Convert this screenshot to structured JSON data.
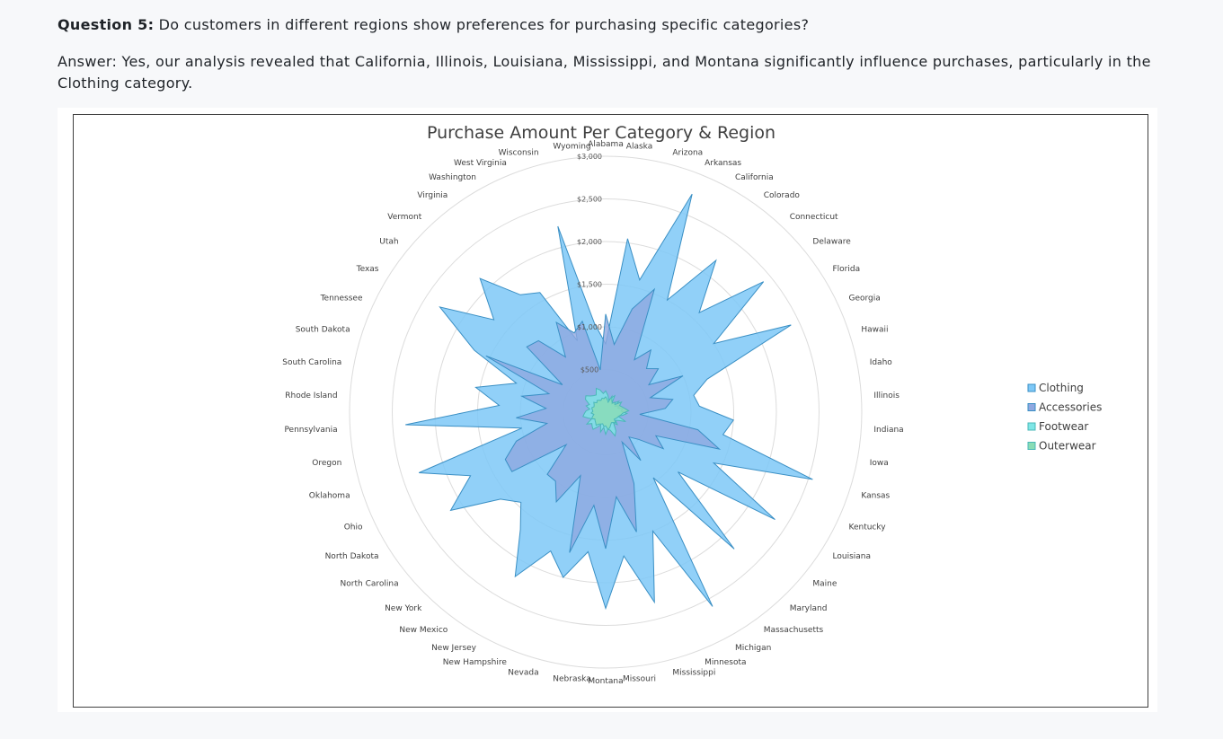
{
  "question": {
    "label": "Question 5:",
    "text": " Do customers in different regions show preferences for purchasing specific categories?"
  },
  "answer": {
    "text": "Answer: Yes, our analysis revealed that California, Illinois, Louisiana, Mississippi, and Montana significantly influence purchases, particularly in the Clothing category."
  },
  "chart_data": {
    "type": "radar",
    "title": "Purchase Amount Per Category & Region",
    "categories": [
      "Alabama",
      "Alaska",
      "Arizona",
      "Arkansas",
      "California",
      "Colorado",
      "Connecticut",
      "Delaware",
      "Florida",
      "Georgia",
      "Hawaii",
      "Idaho",
      "Illinois",
      "Indiana",
      "Iowa",
      "Kansas",
      "Kentucky",
      "Louisiana",
      "Maine",
      "Maryland",
      "Massachusetts",
      "Michigan",
      "Minnesota",
      "Mississippi",
      "Missouri",
      "Montana",
      "Nebraska",
      "Nevada",
      "New Hampshire",
      "New Jersey",
      "New Mexico",
      "New York",
      "North Carolina",
      "North Dakota",
      "Ohio",
      "Oklahoma",
      "Oregon",
      "Pennsylvania",
      "Rhode Island",
      "South Carolina",
      "South Dakota",
      "Tennessee",
      "Texas",
      "Utah",
      "Vermont",
      "Virginia",
      "Washington",
      "West Virginia",
      "Wisconsin",
      "Wyoming"
    ],
    "y_tick_labels": [
      "$500",
      "$1,000",
      "$1,500",
      "$2,000",
      "$2,500",
      "$3,000"
    ],
    "ylim": [
      0,
      3000
    ],
    "gridlines": true,
    "legend_position": "right",
    "series": [
      {
        "name": "Clothing",
        "color": "#7ec8f7",
        "values": [
          800,
          2050,
          1600,
          2750,
          1500,
          2200,
          1600,
          2400,
          1500,
          2400,
          1250,
          1050,
          1100,
          1500,
          1400,
          2550,
          1400,
          2350,
          1100,
          2200,
          950,
          2600,
          1500,
          2300,
          1700,
          2300,
          1650,
          2000,
          1750,
          2200,
          1700,
          1450,
          1600,
          2150,
          1750,
          2300,
          1000,
          2350,
          1250,
          1550,
          1100,
          1700,
          2300,
          1700,
          2150,
          1700,
          1600,
          900,
          2250,
          1050
        ]
      },
      {
        "name": "Accessories",
        "color": "#8fa8e0",
        "values": [
          1150,
          800,
          1250,
          1550,
          700,
          900,
          700,
          800,
          600,
          1000,
          550,
          800,
          700,
          400,
          1100,
          1400,
          650,
          800,
          500,
          400,
          700,
          400,
          900,
          1450,
          1000,
          1600,
          1100,
          1700,
          800,
          1200,
          1000,
          1000,
          600,
          1300,
          1300,
          1100,
          700,
          1050,
          700,
          1000,
          700,
          1550,
          600,
          1200,
          1150,
          800,
          1200,
          1000,
          1100,
          500
        ]
      },
      {
        "name": "Footwear",
        "color": "#7fe6e6",
        "values": [
          250,
          200,
          150,
          180,
          220,
          120,
          150,
          200,
          130,
          170,
          150,
          200,
          180,
          250,
          200,
          150,
          260,
          180,
          150,
          200,
          160,
          250,
          300,
          220,
          200,
          260,
          180,
          240,
          160,
          200,
          250,
          230,
          210,
          260,
          180,
          220,
          270,
          250,
          230,
          190,
          240,
          210,
          280,
          300,
          260,
          240,
          230,
          300,
          270,
          220
        ]
      },
      {
        "name": "Outerwear",
        "color": "#89dcb5",
        "values": [
          180,
          150,
          120,
          200,
          150,
          130,
          160,
          140,
          220,
          180,
          200,
          230,
          270,
          200,
          180,
          160,
          150,
          140,
          130,
          170,
          150,
          140,
          160,
          190,
          200,
          160,
          170,
          140,
          150,
          160,
          190,
          170,
          160,
          150,
          180,
          160,
          140,
          170,
          150,
          160,
          170,
          150,
          160,
          180,
          150,
          170,
          160,
          150,
          170,
          160
        ]
      }
    ]
  }
}
